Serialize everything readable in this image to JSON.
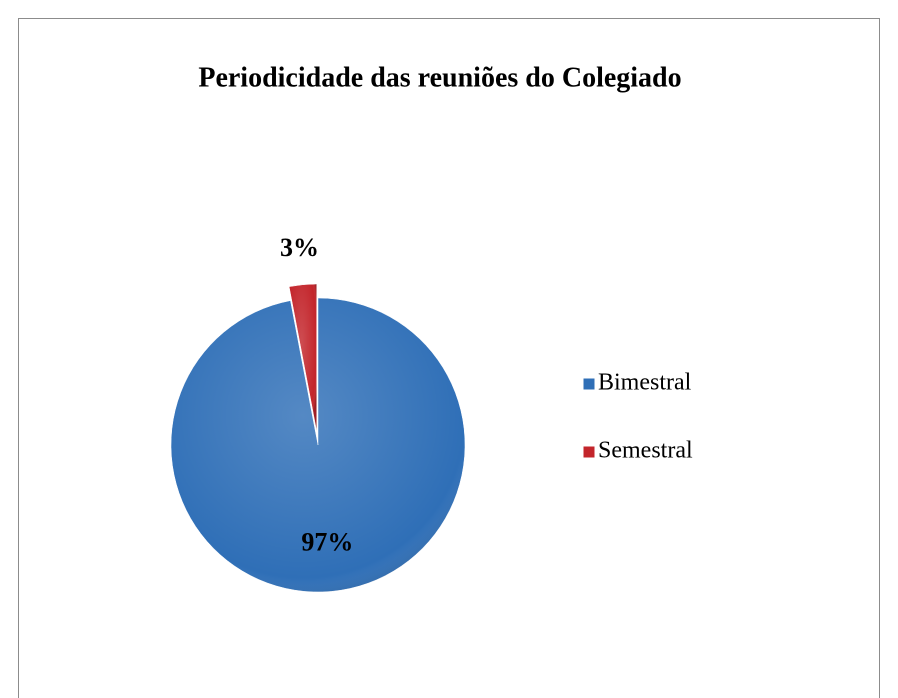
{
  "chart_data": {
    "type": "pie",
    "title": "Periodicidade das reuniões do Colegiado",
    "categories": [
      "Bimestral",
      "Semestral"
    ],
    "series": [
      {
        "values": [
          97,
          3
        ],
        "value_labels": [
          "97%",
          "3%"
        ],
        "colors": [
          "#2f6fb7",
          "#c3252b"
        ]
      }
    ],
    "legend": "right"
  }
}
